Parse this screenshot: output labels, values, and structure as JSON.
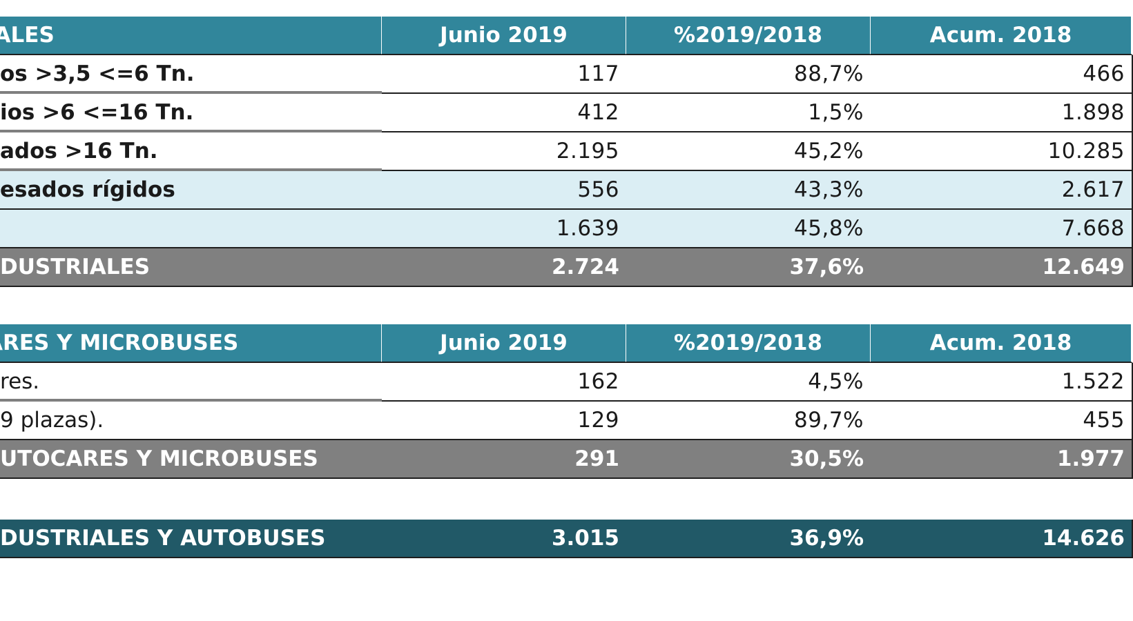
{
  "columns": [
    "Junio 2019",
    "%2019/2018",
    "Acum. 2018"
  ],
  "industrial": {
    "header": "IALES",
    "rows": [
      {
        "label": "os >3,5 <=6 Tn.",
        "junio": "117",
        "pct": "88,7%",
        "acum": "466"
      },
      {
        "label": "ios >6  <=16 Tn.",
        "junio": "412",
        "pct": "1,5%",
        "acum": "1.898"
      },
      {
        "label": "ados >16 Tn.",
        "junio": "2.195",
        "pct": "45,2%",
        "acum": "10.285"
      },
      {
        "label": "esados rígidos",
        "junio": "556",
        "pct": "43,3%",
        "acum": "2.617"
      },
      {
        "label": "",
        "junio": "1.639",
        "pct": "45,8%",
        "acum": "7.668"
      }
    ],
    "total": {
      "label": "DUSTRIALES",
      "junio": "2.724",
      "pct": "37,6%",
      "acum": "12.649"
    }
  },
  "buses": {
    "header": "ARES Y MICROBUSES",
    "rows": [
      {
        "label": "res.",
        "junio": "162",
        "pct": "4,5%",
        "acum": "1.522"
      },
      {
        "label": "9 plazas).",
        "junio": "129",
        "pct": "89,7%",
        "acum": "455"
      }
    ],
    "total": {
      "label": "UTOCARES Y MICROBUSES",
      "junio": "291",
      "pct": "30,5%",
      "acum": "1.977"
    }
  },
  "grand_total": {
    "label": "DUSTRIALES Y AUTOBUSES",
    "junio": "3.015",
    "pct": "36,9%",
    "acum": "14.626"
  }
}
